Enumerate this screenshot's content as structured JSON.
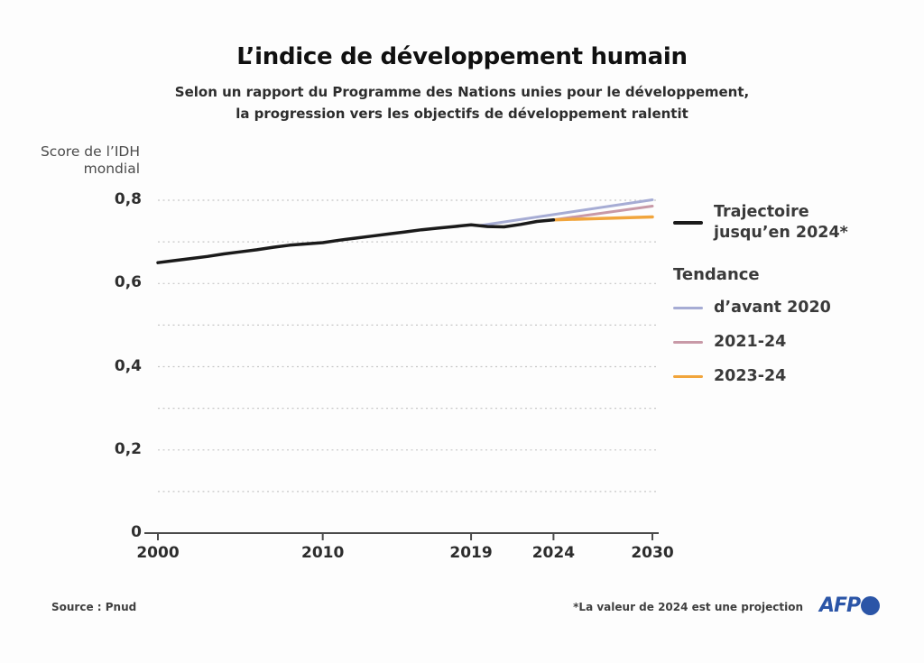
{
  "header": {
    "title": "L’indice de développement humain",
    "subtitle_line1": "Selon un rapport du Programme des Nations unies pour le développement,",
    "subtitle_line2": "la progression vers les objectifs de développement ralentit"
  },
  "axis_label": {
    "line1": "Score de l’IDH",
    "line2": "mondial"
  },
  "legend": {
    "trajectory_line1": "Trajectoire",
    "trajectory_line2": "jusqu’en 2024*",
    "trajectory_color": "#1a1a1a",
    "heading": "Tendance",
    "items": [
      {
        "label": "d’avant 2020",
        "color": "#a6acd4"
      },
      {
        "label": "2021-24",
        "color": "#c899a7"
      },
      {
        "label": "2023-24",
        "color": "#f1a53c"
      }
    ]
  },
  "footer": {
    "source": "Source : Pnud",
    "note": "*La valeur de 2024 est une projection",
    "logo_text": "AFP",
    "logo_color": "#2b55a7"
  },
  "chart_data": {
    "type": "line",
    "title": "L’indice de développement humain",
    "ylabel": "Score de l’IDH mondial",
    "xlabel": "",
    "xlim": [
      2000,
      2030
    ],
    "ylim": [
      0,
      0.8
    ],
    "grid": true,
    "legend_position": "right",
    "gridlines": [
      0.1,
      0.2,
      0.3,
      0.4,
      0.5,
      0.6,
      0.7,
      0.8
    ],
    "y_ticks": [
      {
        "value": 0,
        "label": "0"
      },
      {
        "value": 0.2,
        "label": "0,2"
      },
      {
        "value": 0.4,
        "label": "0,4"
      },
      {
        "value": 0.6,
        "label": "0,6"
      },
      {
        "value": 0.8,
        "label": "0,8"
      }
    ],
    "x_ticks": [
      {
        "value": 2000,
        "label": "2000"
      },
      {
        "value": 2010,
        "label": "2010"
      },
      {
        "value": 2019,
        "label": "2019"
      },
      {
        "value": 2024,
        "label": "2024"
      },
      {
        "value": 2030,
        "label": "2030"
      }
    ],
    "series": [
      {
        "id": "tendance-avant-2020",
        "name": "d’avant 2020",
        "color": "#a6acd4",
        "width": 3,
        "points": [
          [
            2019.5,
            0.739
          ],
          [
            2030,
            0.801
          ]
        ]
      },
      {
        "id": "tendance-2021-24",
        "name": "2021-24",
        "color": "#c899a7",
        "width": 3,
        "points": [
          [
            2024,
            0.753
          ],
          [
            2030,
            0.786
          ]
        ]
      },
      {
        "id": "tendance-2023-24",
        "name": "2023-24",
        "color": "#f1a53c",
        "width": 3.5,
        "points": [
          [
            2024,
            0.753
          ],
          [
            2030,
            0.76
          ]
        ]
      },
      {
        "id": "trajectoire",
        "name": "Trajectoire jusqu’en 2024*",
        "color": "#1a1a1a",
        "width": 3.5,
        "points": [
          [
            2000,
            0.65
          ],
          [
            2001,
            0.655
          ],
          [
            2002,
            0.66
          ],
          [
            2003,
            0.665
          ],
          [
            2004,
            0.671
          ],
          [
            2005,
            0.676
          ],
          [
            2006,
            0.681
          ],
          [
            2007,
            0.687
          ],
          [
            2008,
            0.692
          ],
          [
            2009,
            0.695
          ],
          [
            2010,
            0.698
          ],
          [
            2011,
            0.704
          ],
          [
            2012,
            0.709
          ],
          [
            2013,
            0.714
          ],
          [
            2014,
            0.719
          ],
          [
            2015,
            0.724
          ],
          [
            2016,
            0.729
          ],
          [
            2017,
            0.733
          ],
          [
            2018,
            0.737
          ],
          [
            2019,
            0.741
          ],
          [
            2020,
            0.737
          ],
          [
            2021,
            0.736
          ],
          [
            2022,
            0.742
          ],
          [
            2023,
            0.749
          ],
          [
            2024,
            0.753
          ]
        ]
      }
    ]
  }
}
